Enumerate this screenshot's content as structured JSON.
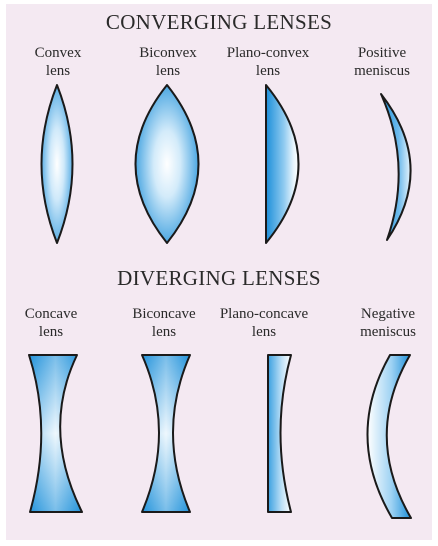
{
  "converging": {
    "title": "CONVERGING LENSES",
    "lenses": [
      {
        "label": "Convex\nlens"
      },
      {
        "label": "Biconvex\nlens"
      },
      {
        "label": "Plano-convex\nlens"
      },
      {
        "label": "Positive\nmeniscus"
      }
    ]
  },
  "diverging": {
    "title": "DIVERGING LENSES",
    "lenses": [
      {
        "label": "Concave\nlens"
      },
      {
        "label": "Biconcave\nlens"
      },
      {
        "label": "Plano-concave\nlens"
      },
      {
        "label": "Negative\nmeniscus"
      }
    ]
  },
  "colors": {
    "background": "#f4e9f2",
    "lens_center": "#ffffff",
    "lens_edge": "#1c8fd9",
    "outline": "#1a1a1a",
    "text": "#2a2a2a"
  }
}
